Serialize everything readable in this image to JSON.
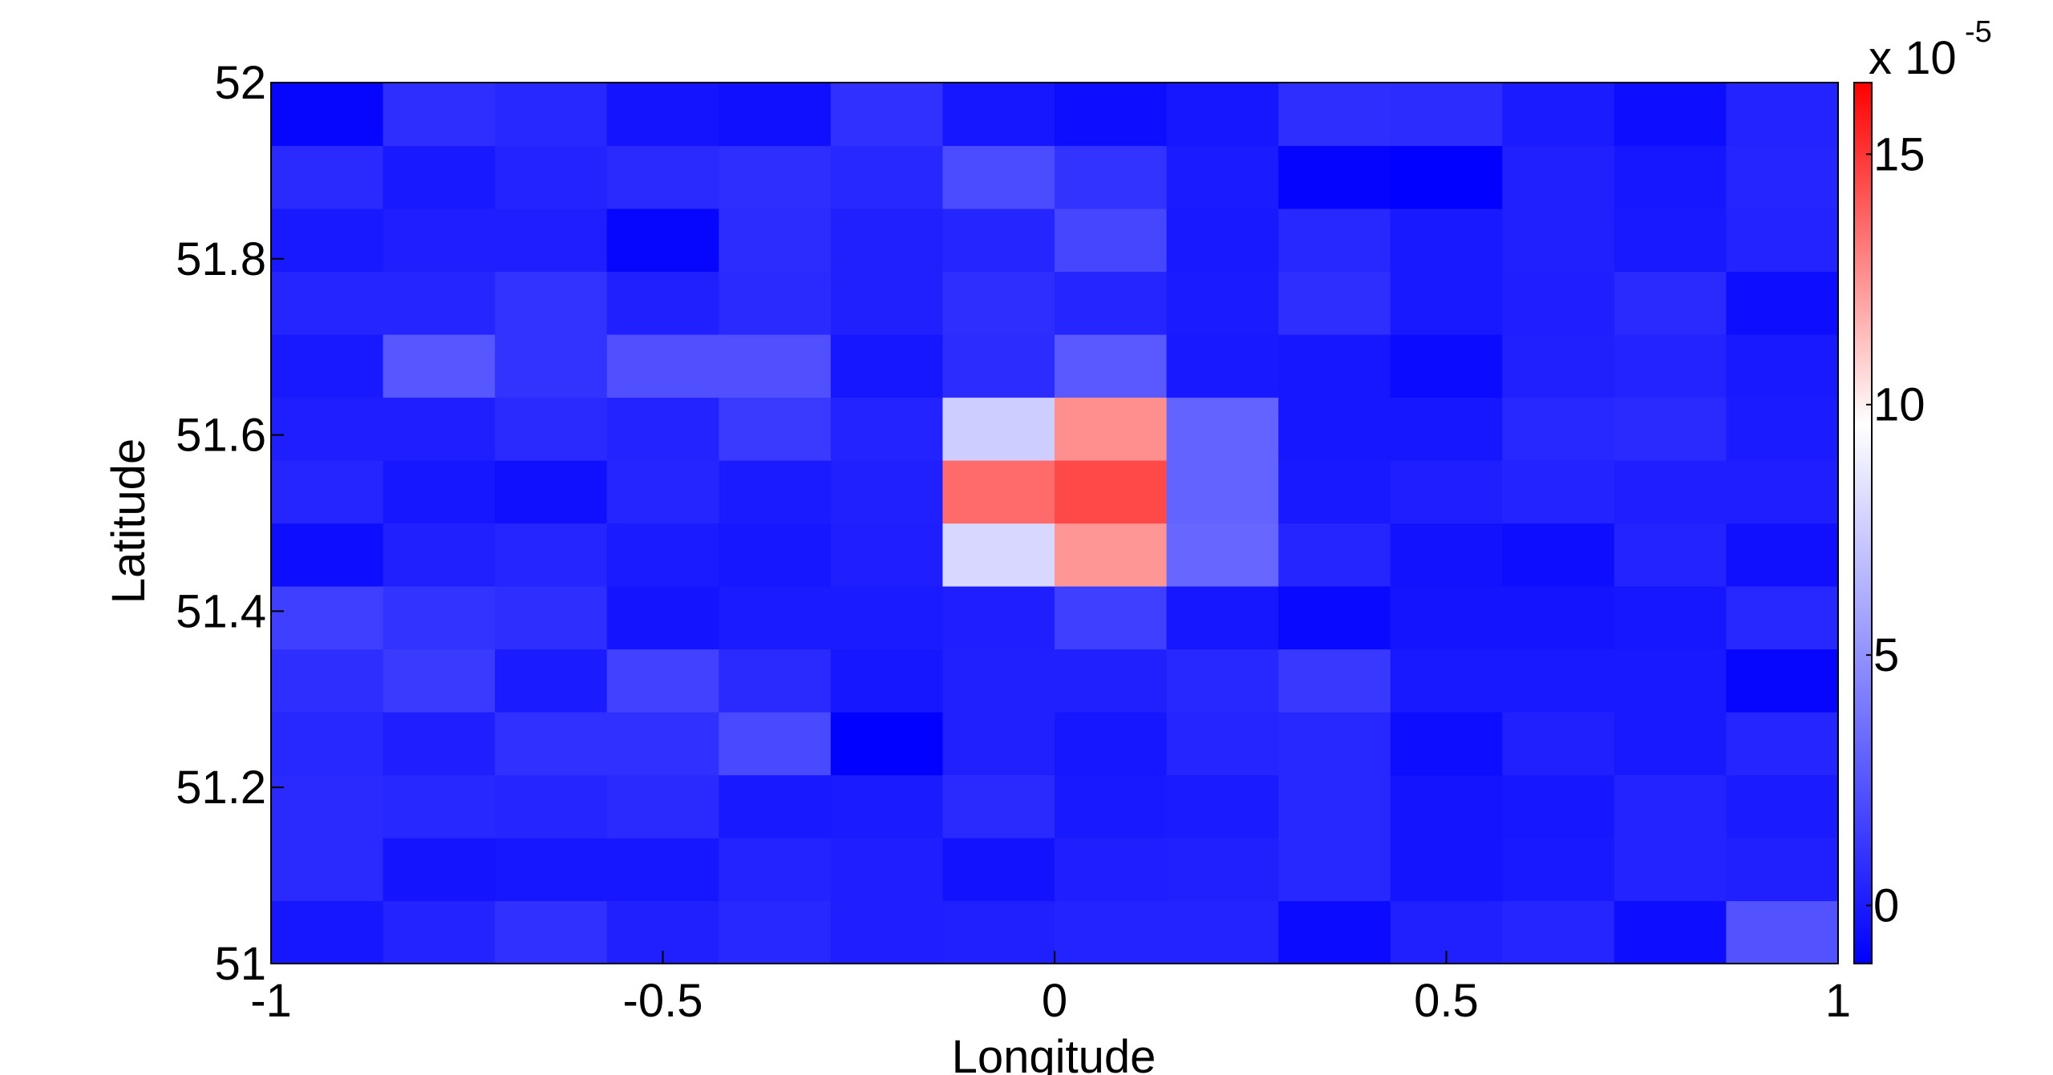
{
  "chart_data": {
    "type": "heatmap",
    "xlabel": "Longitude",
    "ylabel": "Latitude",
    "xlim": [
      -1,
      1
    ],
    "ylim": [
      51,
      52
    ],
    "xticks": [
      -1,
      -0.5,
      0,
      0.5,
      1
    ],
    "yticks": [
      51,
      51.2,
      51.4,
      51.6,
      51.8,
      52
    ],
    "z": [
      [
        -0.2,
        0.3,
        0.9,
        0.2,
        0.5,
        0.1,
        0.2,
        0.3,
        0.3,
        -0.7,
        0.2,
        0.4,
        -0.6,
        2.3
      ],
      [
        0.6,
        -0.3,
        -0.2,
        -0.2,
        0.3,
        0.1,
        -0.4,
        0.1,
        0.2,
        0.5,
        -0.3,
        -0.1,
        0.3,
        0.2
      ],
      [
        0.6,
        0.5,
        0.4,
        0.6,
        -0.1,
        0.0,
        0.6,
        -0.1,
        0.0,
        0.5,
        -0.3,
        -0.2,
        0.3,
        0.0
      ],
      [
        0.5,
        0.1,
        0.9,
        0.9,
        1.9,
        -1.1,
        0.2,
        -0.2,
        0.4,
        0.5,
        -0.6,
        0.2,
        -0.1,
        0.4
      ],
      [
        0.8,
        1.3,
        0.0,
        1.6,
        0.6,
        -0.2,
        0.2,
        0.2,
        0.5,
        1.2,
        -0.1,
        -0.1,
        -0.1,
        -0.9
      ],
      [
        1.5,
        1.0,
        0.8,
        -0.3,
        0.0,
        0.0,
        0.1,
        1.5,
        -0.2,
        -0.8,
        -0.3,
        -0.3,
        -0.2,
        0.5
      ],
      [
        -0.6,
        0.2,
        0.4,
        0.0,
        -0.2,
        0.1,
        7.9,
        12.4,
        3.2,
        0.4,
        -0.4,
        -0.6,
        0.3,
        -0.5
      ],
      [
        0.4,
        -0.2,
        -0.5,
        0.4,
        0.0,
        0.2,
        13.6,
        14.5,
        3.0,
        -0.1,
        0.1,
        0.3,
        0.1,
        0.1
      ],
      [
        0.1,
        0.1,
        0.6,
        0.3,
        1.3,
        0.3,
        7.5,
        12.6,
        3.0,
        -0.2,
        -0.2,
        0.5,
        0.6,
        0.0
      ],
      [
        -0.1,
        2.5,
        1.0,
        2.2,
        2.2,
        -0.2,
        0.7,
        2.6,
        -0.1,
        -0.2,
        -0.7,
        0.2,
        0.3,
        -0.1
      ],
      [
        0.4,
        0.4,
        1.0,
        0.2,
        0.6,
        0.2,
        0.8,
        0.4,
        0.0,
        0.8,
        -0.1,
        0.1,
        0.6,
        -0.6
      ],
      [
        -0.1,
        0.1,
        0.1,
        -0.9,
        0.7,
        0.2,
        0.4,
        1.8,
        -0.1,
        0.5,
        -0.1,
        0.2,
        -0.1,
        0.3
      ],
      [
        0.6,
        -0.1,
        0.3,
        0.6,
        0.8,
        0.5,
        2.0,
        1.0,
        0.0,
        -1.0,
        -1.1,
        0.2,
        -0.2,
        0.4
      ],
      [
        -0.9,
        0.8,
        0.5,
        -0.3,
        -0.5,
        0.9,
        -0.2,
        -0.6,
        -0.2,
        0.8,
        0.7,
        0.0,
        -0.6,
        0.3
      ]
    ],
    "clim": [
      -1.16,
      16.43
    ],
    "colormap": [
      {
        "value": -1.16,
        "color": "#0000ff"
      },
      {
        "value": 9.6,
        "color": "#ffffff"
      },
      {
        "value": 16.43,
        "color": "#ff0000"
      }
    ],
    "cticks": [
      0,
      5,
      10,
      15
    ],
    "colorbar_scale_label": "x 10",
    "colorbar_scale_exponent": "-5"
  }
}
